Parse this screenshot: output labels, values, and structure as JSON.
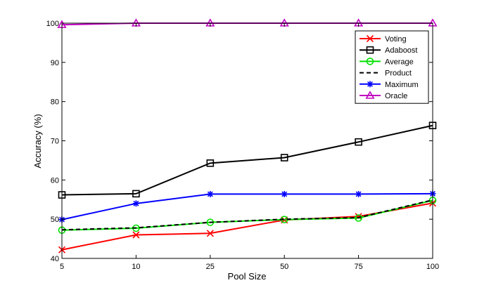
{
  "chart_data": {
    "type": "line",
    "title": "",
    "xlabel": "Pool Size",
    "ylabel": "Accuracy (%)",
    "categories": [
      "5",
      "10",
      "25",
      "50",
      "75",
      "100"
    ],
    "ylim": [
      40,
      100
    ],
    "yticks": [
      40,
      50,
      60,
      70,
      80,
      90,
      100
    ],
    "grid": false,
    "legend_position": "top-right",
    "series": [
      {
        "name": "Voting",
        "color": "#ff0000",
        "marker": "x",
        "dash": "solid",
        "values": [
          42.2,
          46.0,
          46.4,
          49.8,
          50.7,
          54.1
        ]
      },
      {
        "name": "Adaboost",
        "color": "#000000",
        "marker": "square",
        "dash": "solid",
        "values": [
          56.2,
          56.5,
          64.3,
          65.7,
          69.7,
          73.9
        ]
      },
      {
        "name": "Average",
        "color": "#00e000",
        "marker": "circle",
        "dash": "solid",
        "values": [
          47.2,
          47.7,
          49.2,
          49.9,
          50.3,
          54.8
        ]
      },
      {
        "name": "Product",
        "color": "#000000",
        "marker": "none",
        "dash": "dashed",
        "values": [
          47.3,
          47.8,
          49.2,
          50.0,
          50.4,
          54.9
        ]
      },
      {
        "name": "Maximum",
        "color": "#0000ff",
        "marker": "asterisk",
        "dash": "solid",
        "values": [
          49.9,
          54.0,
          56.4,
          56.4,
          56.4,
          56.5
        ]
      },
      {
        "name": "Oracle",
        "color": "#c000c0",
        "marker": "triangle",
        "dash": "solid",
        "values": [
          99.6,
          100,
          100,
          100,
          100,
          100
        ]
      }
    ]
  }
}
